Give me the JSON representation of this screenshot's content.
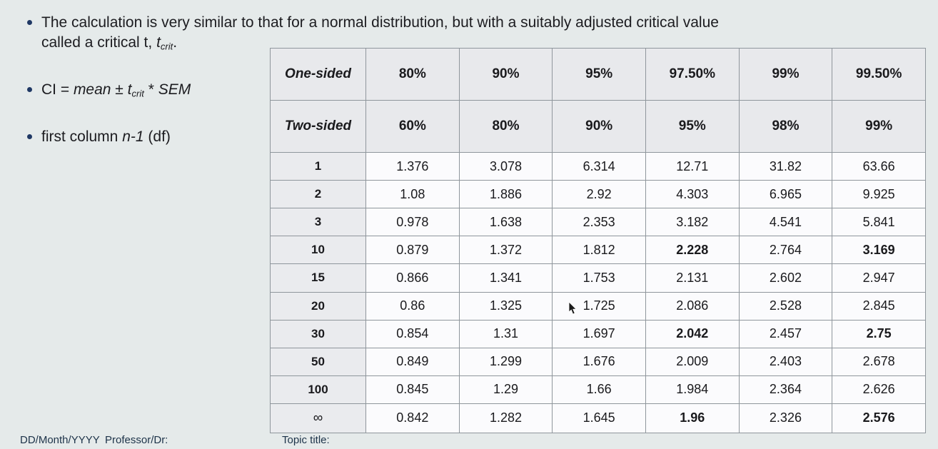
{
  "colors": {
    "slide_background": "#e5eaea",
    "bullet_dot": "#1f3864",
    "table_border": "#8f969c",
    "table_header_bg": "#e8e9ec",
    "table_df_column_bg": "#eaebee",
    "table_cell_bg": "#fbfbfd",
    "footer_text": "#1d3349",
    "body_text": "#1c1c20"
  },
  "bullets": {
    "b1": {
      "line1": "The calculation is very similar to that for a normal distribution, but with a suitably adjusted critical value",
      "line2_prefix": "called a critical t, ",
      "t_symbol": "t",
      "t_subscript": "crit",
      "line2_suffix": "."
    },
    "b2": {
      "prefix": "CI = ",
      "mean": "mean",
      "plus_minus": " ± ",
      "t_symbol": "t",
      "t_subscript": "crit",
      "times": " * ",
      "sem": "SEM"
    },
    "b3": {
      "prefix": "first column ",
      "n_minus_1": "n-1",
      "suffix": " (df)"
    }
  },
  "t_table": {
    "header_row_1": [
      "One-sided",
      "80%",
      "90%",
      "95%",
      "97.50%",
      "99%",
      "99.50%"
    ],
    "header_row_2": [
      "Two-sided",
      "60%",
      "80%",
      "90%",
      "95%",
      "98%",
      "99%"
    ],
    "rows": [
      {
        "df": "1",
        "values": [
          "1.376",
          "3.078",
          "6.314",
          "12.71",
          "31.82",
          "63.66"
        ],
        "bold_cols": []
      },
      {
        "df": "2",
        "values": [
          "1.08",
          "1.886",
          "2.92",
          "4.303",
          "6.965",
          "9.925"
        ],
        "bold_cols": []
      },
      {
        "df": "3",
        "values": [
          "0.978",
          "1.638",
          "2.353",
          "3.182",
          "4.541",
          "5.841"
        ],
        "bold_cols": []
      },
      {
        "df": "10",
        "values": [
          "0.879",
          "1.372",
          "1.812",
          "2.228",
          "2.764",
          "3.169"
        ],
        "bold_cols": [
          3,
          5
        ]
      },
      {
        "df": "15",
        "values": [
          "0.866",
          "1.341",
          "1.753",
          "2.131",
          "2.602",
          "2.947"
        ],
        "bold_cols": []
      },
      {
        "df": "20",
        "values": [
          "0.86",
          "1.325",
          "1.725",
          "2.086",
          "2.528",
          "2.845"
        ],
        "bold_cols": []
      },
      {
        "df": "30",
        "values": [
          "0.854",
          "1.31",
          "1.697",
          "2.042",
          "2.457",
          "2.75"
        ],
        "bold_cols": [
          3,
          5
        ]
      },
      {
        "df": "50",
        "values": [
          "0.849",
          "1.299",
          "1.676",
          "2.009",
          "2.403",
          "2.678"
        ],
        "bold_cols": []
      },
      {
        "df": "100",
        "values": [
          "0.845",
          "1.29",
          "1.66",
          "1.984",
          "2.364",
          "2.626"
        ],
        "bold_cols": []
      },
      {
        "df": "∞",
        "values": [
          "0.842",
          "1.282",
          "1.645",
          "1.96",
          "2.326",
          "2.576"
        ],
        "bold_cols": [
          3,
          5
        ]
      }
    ]
  },
  "footer": {
    "date": "DD/Month/YYYY",
    "professor": "Professor/Dr:",
    "topic": "Topic title:"
  }
}
